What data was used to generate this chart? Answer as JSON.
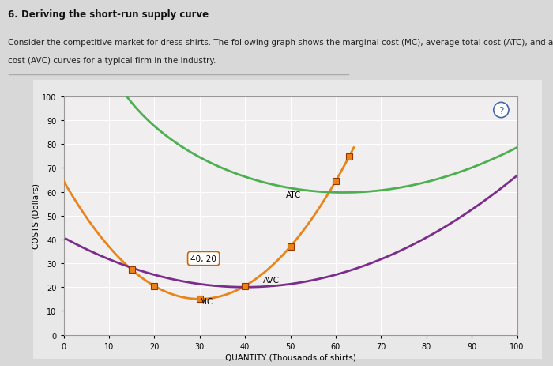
{
  "title_main": "6. Deriving the short-run supply curve",
  "description_line1": "Consider the competitive market for dress shirts. The following graph shows the marginal cost (MC), average total cost (ATC), and average variable",
  "description_line2": "cost (AVC) curves for a typical firm in the industry.",
  "xlabel": "QUANTITY (Thousands of shirts)",
  "ylabel": "COSTS (Dollars)",
  "xlim": [
    0,
    100
  ],
  "ylim": [
    0,
    100
  ],
  "xticks": [
    0,
    10,
    20,
    30,
    40,
    50,
    60,
    70,
    80,
    90,
    100
  ],
  "yticks": [
    0,
    10,
    20,
    30,
    40,
    50,
    60,
    70,
    80,
    90,
    100
  ],
  "mc_color": "#E8841A",
  "atc_color": "#4CAF50",
  "avc_color": "#7B2D8B",
  "annotation_text": "40, 20",
  "label_mc": "MC",
  "label_atc": "ATC",
  "label_avc": "AVC",
  "fig_bg": "#d8d8d8",
  "chart_bg": "#e8e8e8",
  "inner_bg": "#f0eeee"
}
